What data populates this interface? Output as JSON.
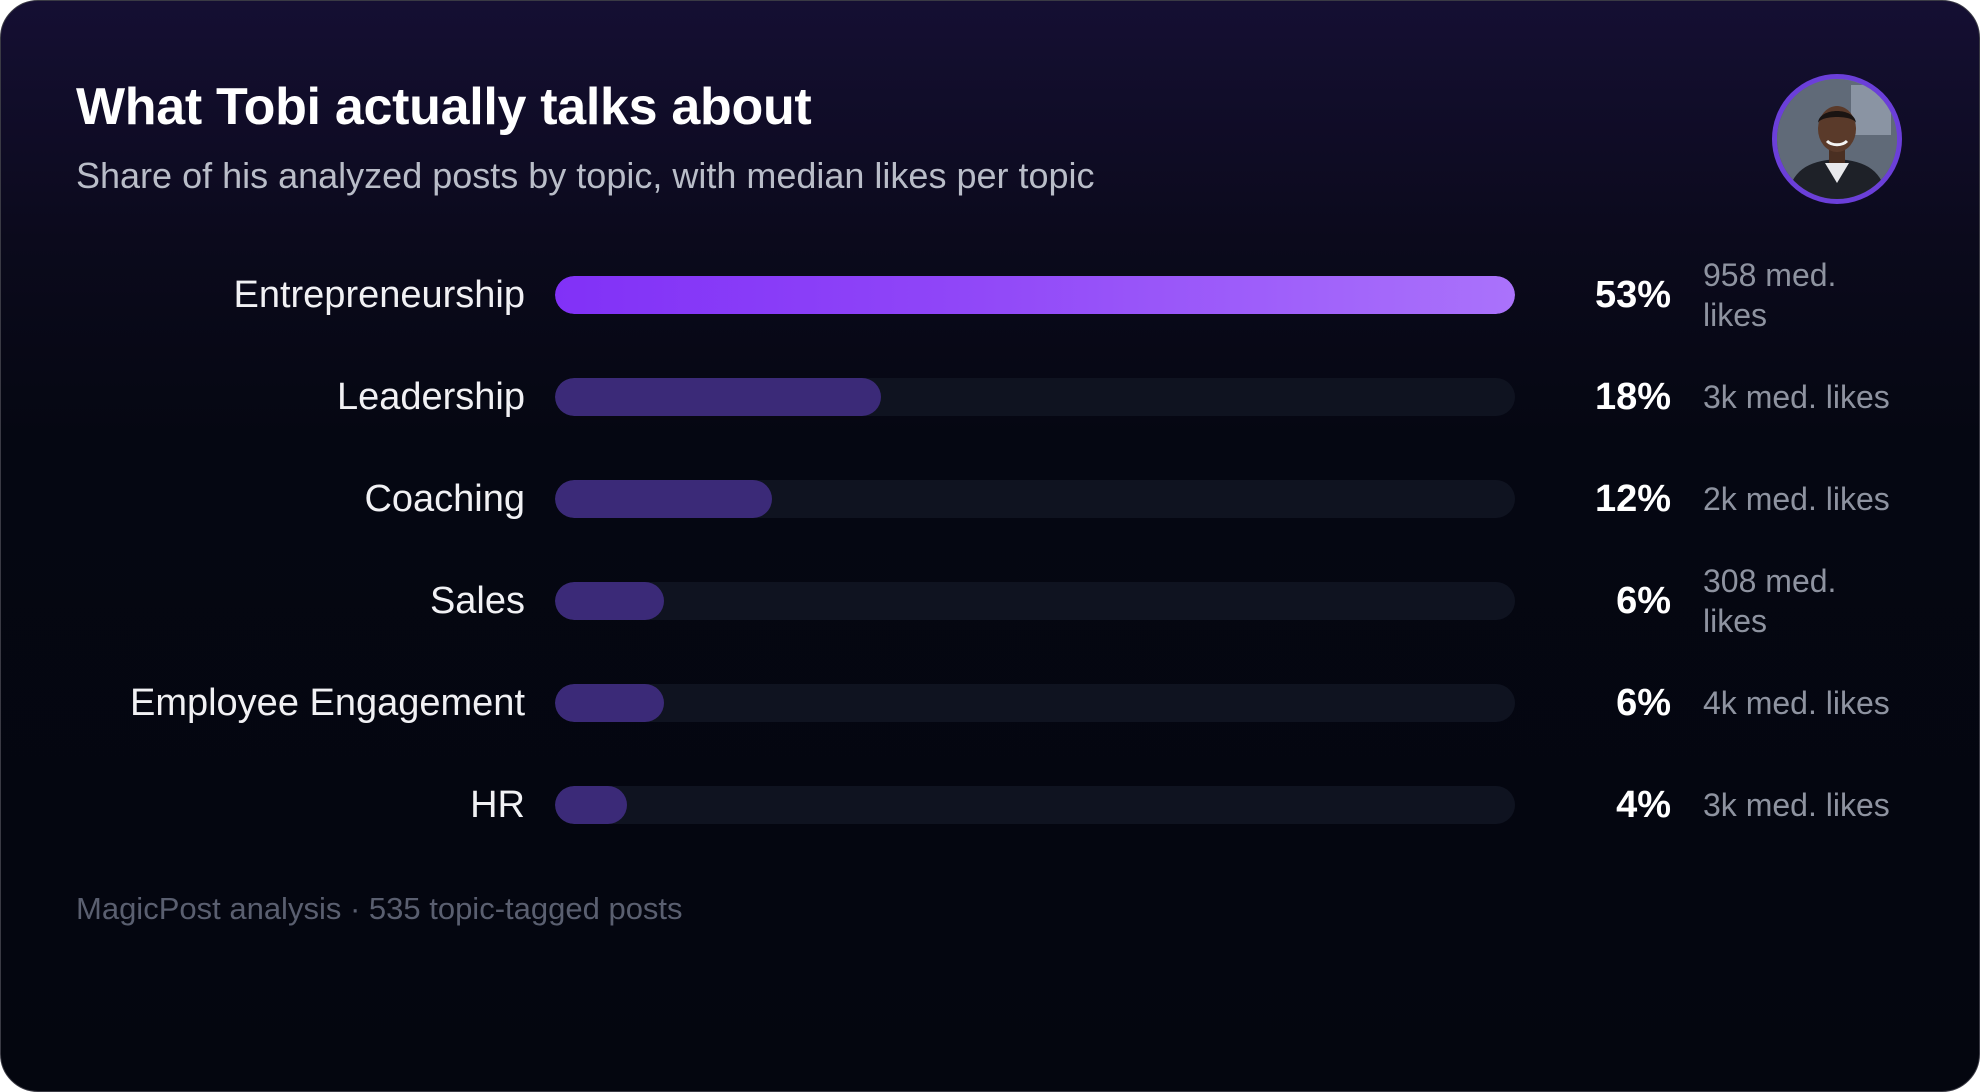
{
  "title": "What Tobi actually talks about",
  "subtitle": "Share of his analyzed posts by topic, with median likes per topic",
  "footer": "MagicPost analysis · 535 topic-tagged posts",
  "colors": {
    "leading_bar_start": "#8131f7",
    "leading_bar_end": "#aa72fb",
    "bar": "#3b2a78",
    "track": "#0f1320",
    "avatar_ring": "#6b3fd9"
  },
  "chart_data": {
    "type": "bar",
    "orientation": "horizontal",
    "title": "What Tobi actually talks about",
    "subtitle": "Share of his analyzed posts by topic, with median likes per topic",
    "xlim": [
      0,
      53
    ],
    "grid": false,
    "categories": [
      "Entrepreneurship",
      "Leadership",
      "Coaching",
      "Sales",
      "Employee Engagement",
      "HR"
    ],
    "values": [
      53,
      18,
      12,
      6,
      6,
      4
    ],
    "value_labels": [
      "53%",
      "18%",
      "12%",
      "6%",
      "6%",
      "4%"
    ],
    "annotations": [
      "958 med. likes",
      "3k med. likes",
      "2k med. likes",
      "308 med. likes",
      "4k med. likes",
      "3k med. likes"
    ],
    "highlighted_category": "Entrepreneurship"
  }
}
